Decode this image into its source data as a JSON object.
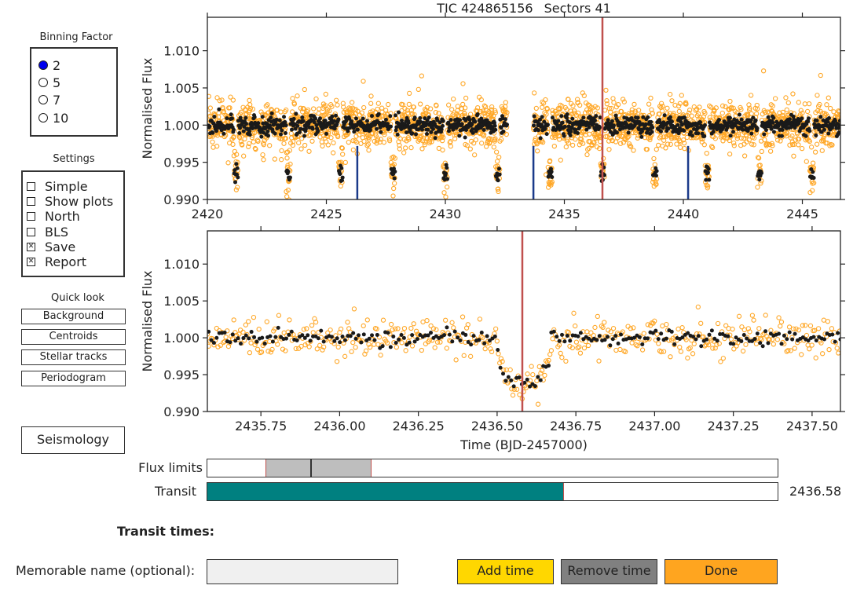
{
  "plot": {
    "title_tic": "TIC 424865156",
    "title_sectors": "Sectors 41",
    "top_ylabel": "Normalised Flux",
    "bottom_ylabel": "Normalised Flux",
    "bottom_xlabel": "Time (BJD-2457000)"
  },
  "binning": {
    "title": "Binning Factor",
    "options": [
      {
        "label": "2",
        "selected": true
      },
      {
        "label": "5",
        "selected": false
      },
      {
        "label": "7",
        "selected": false
      },
      {
        "label": "10",
        "selected": false
      }
    ]
  },
  "settings": {
    "title": "Settings",
    "options": [
      {
        "label": "Simple",
        "checked": false
      },
      {
        "label": "Show plots",
        "checked": false
      },
      {
        "label": "North",
        "checked": false
      },
      {
        "label": "BLS",
        "checked": false
      },
      {
        "label": "Save",
        "checked": true
      },
      {
        "label": "Report",
        "checked": true
      }
    ]
  },
  "quicklook": {
    "title": "Quick look",
    "buttons": [
      "Background",
      "Centroids",
      "Stellar tracks",
      "Periodogram"
    ]
  },
  "seismology_label": "Seismology",
  "sliders": {
    "flux_label": "Flux limits",
    "flux_low": 0.9925,
    "flux_high": 0.997,
    "transit_label": "Transit",
    "transit_value_text": "2436.58",
    "transit_value": 2436.58
  },
  "transit_times_label": "Transit times:",
  "memorable_label": "Memorable name (optional):",
  "memorable_value": "",
  "buttons": {
    "add": "Add time",
    "remove": "Remove time",
    "done": "Done"
  },
  "colors": {
    "accent_orange": "#ffa726",
    "binned": "#1a1a1a",
    "marker_red": "#c0504d",
    "transit_marker": "#1a3a8a",
    "slider_teal": "#008080",
    "add_yellow": "#ffd700",
    "remove_gray": "#808080",
    "done_orange": "#ffa51f"
  },
  "chart_data": [
    {
      "type": "scatter",
      "title": "TIC 424865156     Sectors 41",
      "xlabel": "",
      "ylabel": "Normalised Flux",
      "xlim": [
        2420,
        2446.6
      ],
      "ylim": [
        0.99,
        1.0145
      ],
      "xticks": [
        2420,
        2425,
        2430,
        2435,
        2440,
        2445
      ],
      "yticks": [
        0.99,
        0.995,
        1.0,
        1.005,
        1.01
      ],
      "ytick_labels": [
        "0.990",
        "0.995",
        "1.000",
        "1.005",
        "1.010"
      ],
      "baseline": 1.0,
      "gap": [
        2432.6,
        2433.7
      ],
      "dip_times": [
        2421.2,
        2423.4,
        2425.6,
        2427.8,
        2430.0,
        2432.2,
        2434.4,
        2436.6,
        2438.8,
        2441.0,
        2443.2,
        2445.4
      ],
      "dip_depth": 0.0065,
      "marker_time": 2436.6,
      "transit_markers": [
        2426.3,
        2433.7,
        2440.2
      ]
    },
    {
      "type": "scatter",
      "title": "",
      "xlabel": "Time (BJD-2457000)",
      "ylabel": "Normalised Flux",
      "xlim": [
        2435.58,
        2437.59
      ],
      "ylim": [
        0.99,
        1.0145
      ],
      "xticks": [
        2435.75,
        2436.0,
        2436.25,
        2436.5,
        2436.75,
        2437.0,
        2437.25,
        2437.5
      ],
      "xtick_labels": [
        "2435.75",
        "2436.00",
        "2436.25",
        "2436.50",
        "2436.75",
        "2437.00",
        "2437.25",
        "2437.50"
      ],
      "yticks": [
        0.99,
        0.995,
        1.0,
        1.005,
        1.01
      ],
      "ytick_labels": [
        "0.990",
        "0.995",
        "1.000",
        "1.005",
        "1.010"
      ],
      "baseline": 1.0,
      "transit_start": 2436.5,
      "transit_end": 2436.67,
      "transit_depth": 0.0062,
      "marker_time": 2436.58
    }
  ]
}
